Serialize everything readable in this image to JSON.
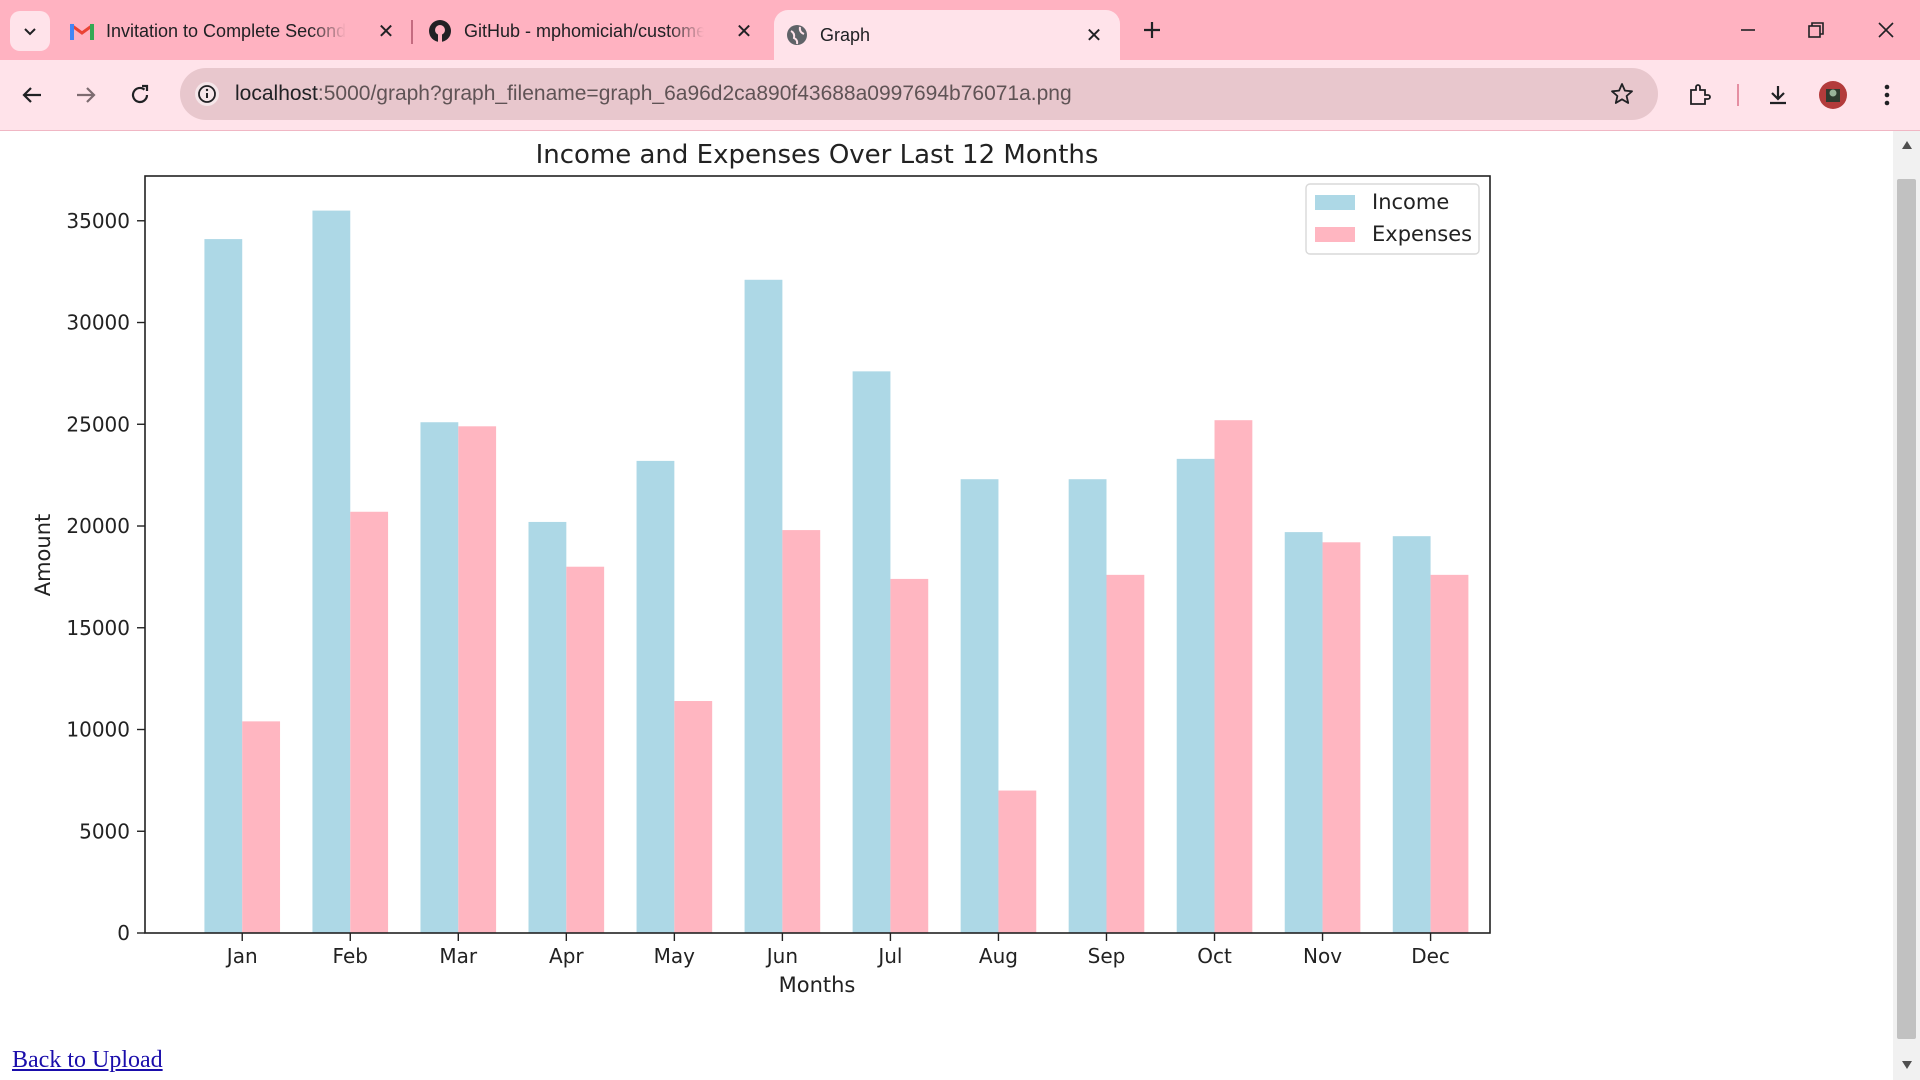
{
  "browser": {
    "tabs": [
      {
        "title": "Invitation to Complete Second Round",
        "icon": "gmail-icon"
      },
      {
        "title": "GitHub - mphomiciah/customer",
        "icon": "github-icon"
      },
      {
        "title": "Graph",
        "icon": "globe-icon",
        "active": true
      }
    ],
    "url_host": "localhost",
    "url_rest": ":5000/graph?graph_filename=graph_6a96d2ca890f43688a0997694b76071a.png"
  },
  "page": {
    "back_link": "Back to Upload"
  },
  "colors": {
    "tabstrip": "#ffb2c1",
    "toolbar": "#ffe3ea",
    "income": "#add8e6",
    "expenses": "#ffb6c1"
  },
  "chart_data": {
    "type": "bar",
    "title": "Income and Expenses Over Last 12 Months",
    "xlabel": "Months",
    "ylabel": "Amount",
    "categories": [
      "Jan",
      "Feb",
      "Mar",
      "Apr",
      "May",
      "Jun",
      "Jul",
      "Aug",
      "Sep",
      "Oct",
      "Nov",
      "Dec"
    ],
    "series": [
      {
        "name": "Income",
        "color": "#add8e6",
        "values": [
          34100,
          35500,
          25100,
          20200,
          23200,
          32100,
          27600,
          22300,
          22300,
          23300,
          19700,
          19500
        ]
      },
      {
        "name": "Expenses",
        "color": "#ffb6c1",
        "values": [
          10400,
          20700,
          24900,
          18000,
          11400,
          19800,
          17400,
          7000,
          17600,
          25200,
          19200,
          17600
        ]
      }
    ],
    "yticks": [
      0,
      5000,
      10000,
      15000,
      20000,
      25000,
      30000,
      35000
    ],
    "ylim": [
      0,
      37200
    ],
    "legend_position": "top-right",
    "grid": false
  }
}
